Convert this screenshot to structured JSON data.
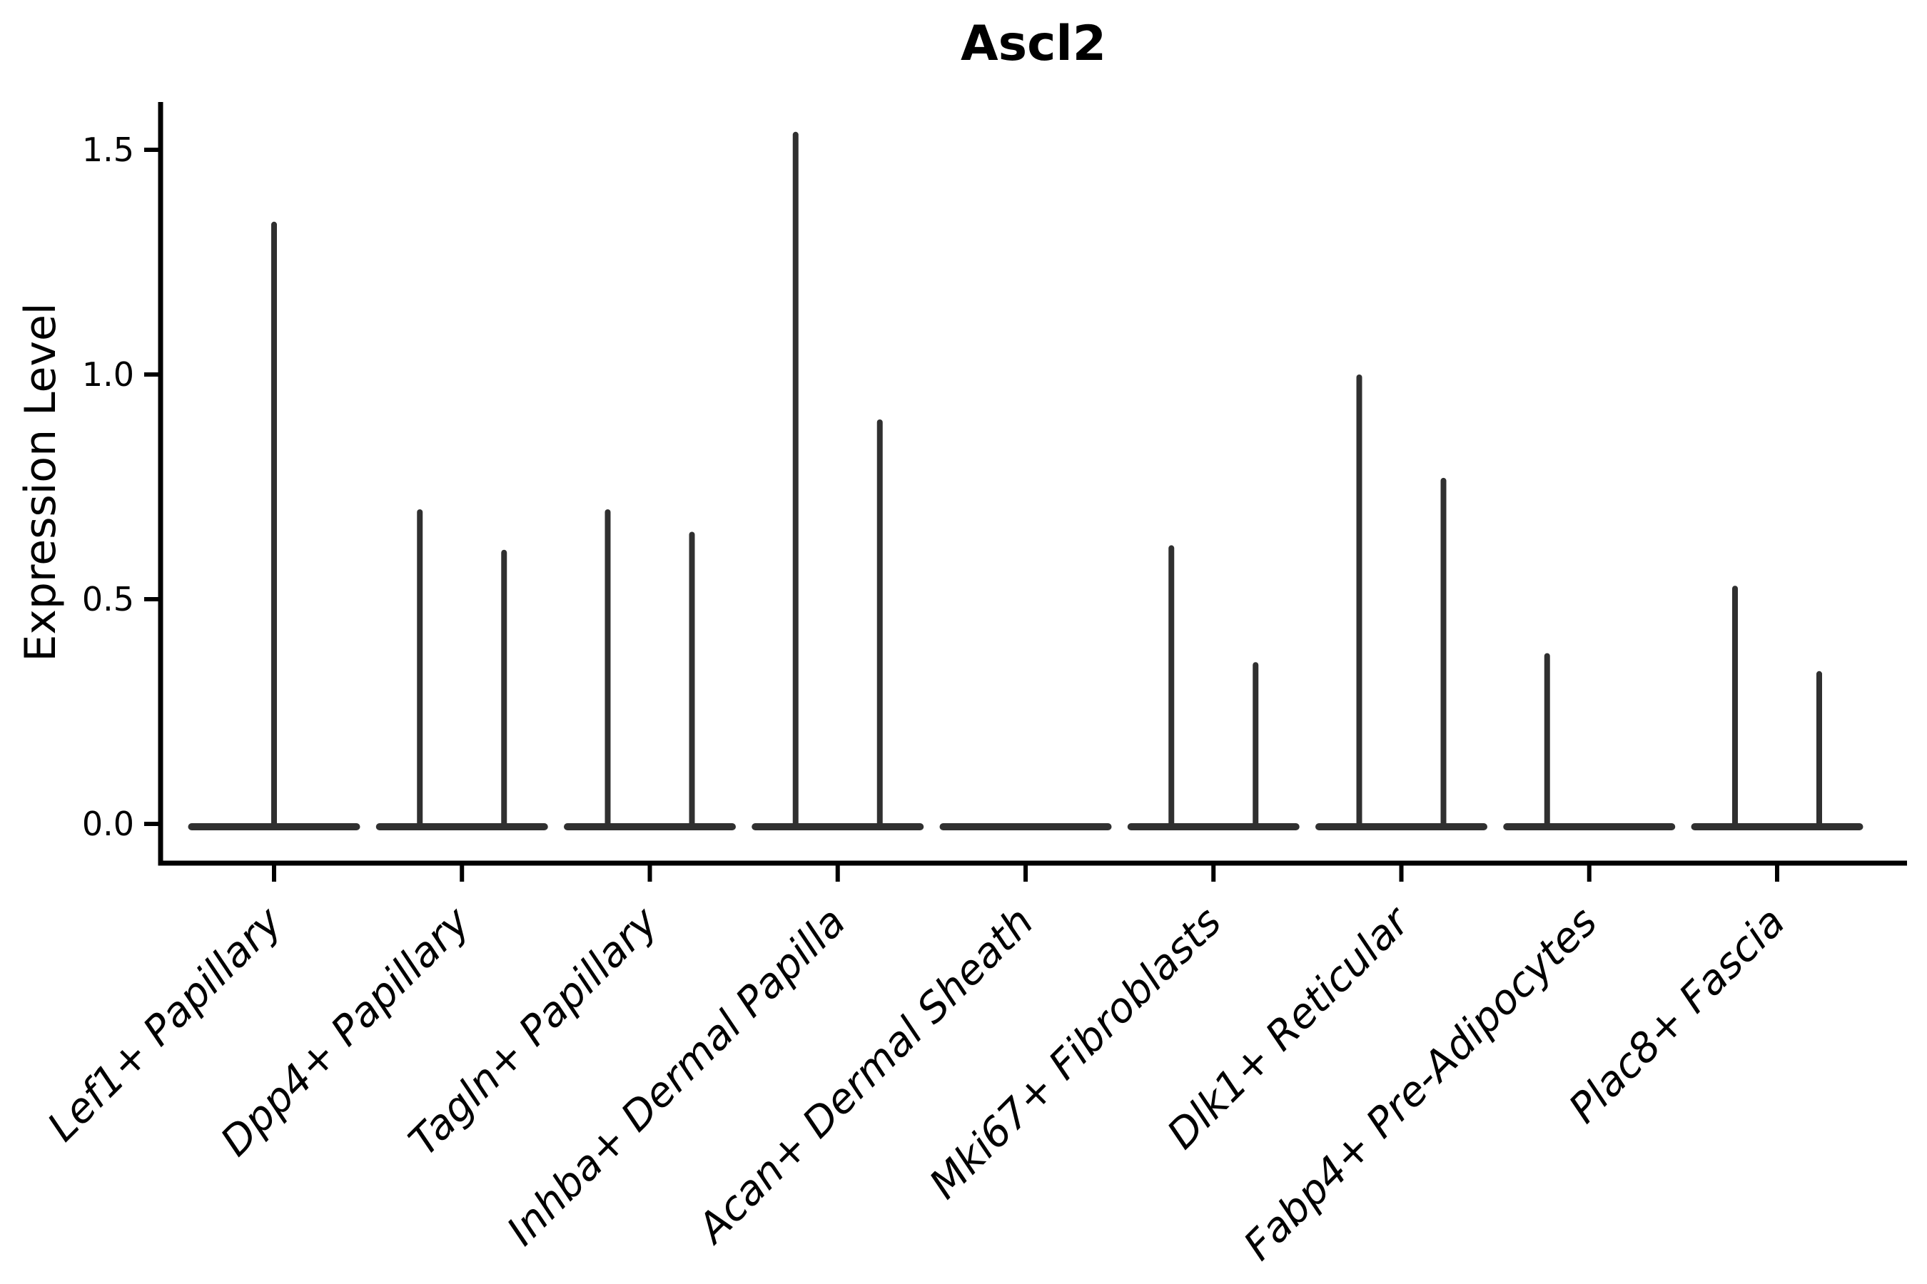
{
  "figure": {
    "background_color": "#ffffff",
    "axis_color": "#000000",
    "violin_color": "#303030"
  },
  "chart_data": {
    "type": "violin",
    "title": "Ascl2",
    "ylabel": "Expression Level",
    "xlabel": "",
    "grid": false,
    "legend": "none",
    "ylim": [
      -0.09,
      1.61
    ],
    "yticks": [
      0.0,
      0.5,
      1.0,
      1.5
    ],
    "ytick_labels": [
      "0.0",
      "0.5",
      "1.0",
      "1.5"
    ],
    "categories": [
      "Lef1+ Papillary",
      "Dpp4+ Papillary",
      "Tagln+ Papillary",
      "Inhba+ Dermal Papilla",
      "Acan+ Dermal Sheath",
      "Mki67+ Fibroblasts",
      "Dlk1+ Reticular",
      "Fabp4+ Pre-Adipocytes",
      "Plac8+ Fascia"
    ],
    "violins": [
      {
        "category": "Lef1+ Papillary",
        "spikes": [
          {
            "offset": "center",
            "max": 1.34
          }
        ]
      },
      {
        "category": "Dpp4+ Papillary",
        "spikes": [
          {
            "offset": "left",
            "max": 0.7
          },
          {
            "offset": "right",
            "max": 0.61
          }
        ]
      },
      {
        "category": "Tagln+ Papillary",
        "spikes": [
          {
            "offset": "left",
            "max": 0.7
          },
          {
            "offset": "right",
            "max": 0.65
          }
        ]
      },
      {
        "category": "Inhba+ Dermal Papilla",
        "spikes": [
          {
            "offset": "left",
            "max": 1.54
          },
          {
            "offset": "right",
            "max": 0.9
          }
        ]
      },
      {
        "category": "Acan+ Dermal Sheath",
        "spikes": []
      },
      {
        "category": "Mki67+ Fibroblasts",
        "spikes": [
          {
            "offset": "left",
            "max": 0.62
          },
          {
            "offset": "right",
            "max": 0.36
          }
        ]
      },
      {
        "category": "Dlk1+ Reticular",
        "spikes": [
          {
            "offset": "left",
            "max": 1.0
          },
          {
            "offset": "right",
            "max": 0.77
          }
        ]
      },
      {
        "category": "Fabp4+ Pre-Adipocytes",
        "spikes": [
          {
            "offset": "left",
            "max": 0.38
          }
        ]
      },
      {
        "category": "Plac8+ Fascia",
        "spikes": [
          {
            "offset": "left",
            "max": 0.53
          },
          {
            "offset": "right",
            "max": 0.34
          }
        ]
      }
    ],
    "baseline_value": 0.0,
    "notes": "Each cell-type violin is collapsed flat at expression 0 with thin vertical density spikes rising to the max expression values listed."
  }
}
